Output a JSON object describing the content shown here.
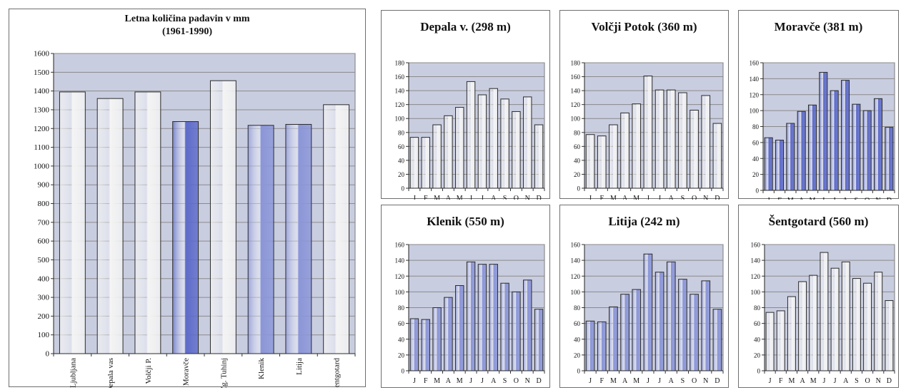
{
  "colors": {
    "plot_bg": "#c9cde0",
    "grid": "#8a8a8a",
    "bar_white": "#f4f4f4",
    "bar_blue": "#8b96d8",
    "bar_blue_dark": "#5d6bc9",
    "bar_edge": "#2b2b2b"
  },
  "chart_data": [
    {
      "type": "bar",
      "title_lines": [
        "Letna količina padavin v mm",
        "(1961-1990)"
      ],
      "categories": [
        "Ljubljana",
        "Depala vas",
        "Volčji P.",
        "Moravče",
        "Zg. Tuhinj",
        "Klenik",
        "Litija",
        "Šentgotard"
      ],
      "values": [
        1395,
        1360,
        1395,
        1237,
        1455,
        1217,
        1222,
        1327
      ],
      "bar_colors": [
        "white",
        "white",
        "white",
        "blue_dark",
        "white",
        "blue",
        "blue",
        "white"
      ],
      "ylim": [
        0,
        1600
      ],
      "yticks": [
        0,
        100,
        200,
        300,
        400,
        500,
        600,
        700,
        800,
        900,
        1000,
        1100,
        1200,
        1300,
        1400,
        1500,
        1600
      ],
      "grid": true
    },
    {
      "type": "bar",
      "title": "Depala v. (298 m)",
      "categories": [
        "J",
        "F",
        "M",
        "A",
        "M",
        "J",
        "J",
        "A",
        "S",
        "O",
        "N",
        "D"
      ],
      "values": [
        73,
        73,
        91,
        104,
        116,
        153,
        134,
        143,
        128,
        110,
        131,
        91
      ],
      "bar_color": "white",
      "ylim": [
        0,
        180
      ],
      "yticks": [
        0,
        20,
        40,
        60,
        80,
        100,
        120,
        140,
        160,
        180
      ],
      "grid": true
    },
    {
      "type": "bar",
      "title": "Volčji Potok (360 m)",
      "categories": [
        "J",
        "F",
        "M",
        "A",
        "M",
        "J",
        "J",
        "A",
        "S",
        "O",
        "N",
        "D"
      ],
      "values": [
        77,
        75,
        91,
        108,
        121,
        161,
        141,
        141,
        137,
        112,
        133,
        93
      ],
      "bar_color": "white",
      "ylim": [
        0,
        180
      ],
      "yticks": [
        0,
        20,
        40,
        60,
        80,
        100,
        120,
        140,
        160,
        180
      ],
      "grid": true
    },
    {
      "type": "bar",
      "title": "Moravče (381 m)",
      "categories": [
        "J",
        "F",
        "M",
        "A",
        "M",
        "J",
        "J",
        "A",
        "S",
        "O",
        "N",
        "D"
      ],
      "values": [
        66,
        63,
        84,
        99,
        107,
        148,
        125,
        138,
        108,
        100,
        115,
        79
      ],
      "bar_color": "blue_dark",
      "ylim": [
        0,
        160
      ],
      "yticks": [
        0,
        20,
        40,
        60,
        80,
        100,
        120,
        140,
        160
      ],
      "grid": true
    },
    {
      "type": "bar",
      "title": "Klenik (550 m)",
      "categories": [
        "J",
        "F",
        "M",
        "A",
        "M",
        "J",
        "J",
        "A",
        "S",
        "O",
        "N",
        "D"
      ],
      "values": [
        66,
        65,
        80,
        93,
        108,
        138,
        135,
        135,
        111,
        100,
        115,
        78
      ],
      "bar_color": "blue",
      "ylim": [
        0,
        160
      ],
      "yticks": [
        0,
        20,
        40,
        60,
        80,
        100,
        120,
        140,
        160
      ],
      "grid": true
    },
    {
      "type": "bar",
      "title": "Litija (242 m)",
      "categories": [
        "J",
        "F",
        "M",
        "A",
        "M",
        "J",
        "J",
        "A",
        "S",
        "O",
        "N",
        "D"
      ],
      "values": [
        63,
        62,
        81,
        97,
        103,
        148,
        125,
        138,
        116,
        97,
        114,
        78
      ],
      "bar_color": "blue",
      "ylim": [
        0,
        160
      ],
      "yticks": [
        0,
        20,
        40,
        60,
        80,
        100,
        120,
        140,
        160
      ],
      "grid": true
    },
    {
      "type": "bar",
      "title": "Šentgotard (560 m)",
      "categories": [
        "J",
        "F",
        "M",
        "A",
        "M",
        "J",
        "J",
        "A",
        "S",
        "O",
        "N",
        "D"
      ],
      "values": [
        74,
        76,
        94,
        113,
        121,
        150,
        130,
        138,
        117,
        111,
        125,
        89
      ],
      "bar_color": "white",
      "ylim": [
        0,
        160
      ],
      "yticks": [
        0,
        20,
        40,
        60,
        80,
        100,
        120,
        140,
        160
      ],
      "grid": true
    }
  ]
}
